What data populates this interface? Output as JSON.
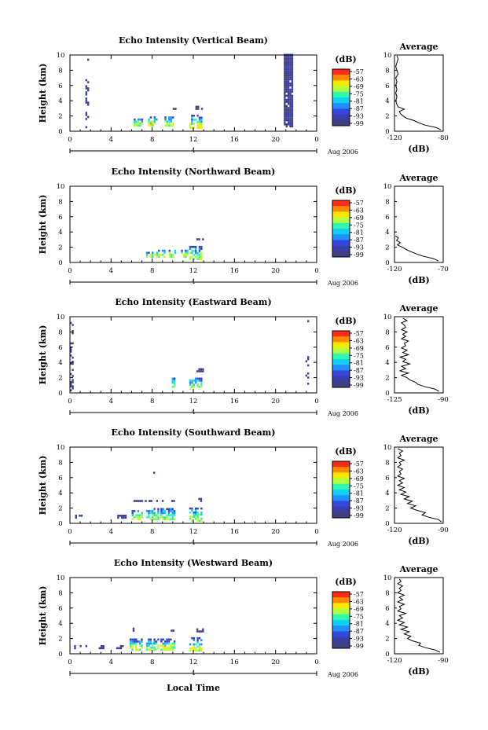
{
  "figure": {
    "xlabel": "Local Time",
    "date_label": "Aug 2006",
    "day_marker": "4",
    "avg_title": "Average",
    "cbar_unit": "(dB)",
    "cbar_ticks": [
      "-57",
      "-63",
      "-69",
      "-75",
      "-81",
      "-87",
      "-93",
      "-99"
    ],
    "cbar_colors": [
      "#ff2a1a",
      "#ff8a00",
      "#f8e800",
      "#b0ff40",
      "#30f8b0",
      "#10d0f8",
      "#2090ff",
      "#3448e0",
      "#3a3fa8",
      "#404080"
    ],
    "echo_color_low": "#3a3f78",
    "ylabel": "Height (km)"
  },
  "chart_data": [
    {
      "type": "heatmap",
      "title": "Echo Intensity (Vertical Beam)",
      "xlabel": "",
      "ylabel": "Height (km)",
      "xlim": [
        0,
        24
      ],
      "ylim": [
        0,
        10
      ],
      "x_ticks": [
        "0",
        "4",
        "8",
        "12",
        "16",
        "20",
        "0"
      ],
      "y_ticks": [
        "0",
        "2",
        "4",
        "6",
        "8",
        "10"
      ],
      "echo_blocks": [
        {
          "t0": 1.5,
          "t1": 1.7,
          "h0": 0.4,
          "h1": 9.8,
          "level": "low",
          "sparse": true
        },
        {
          "t0": 6.2,
          "t1": 7.0,
          "h0": 0.6,
          "h1": 1.6,
          "level": "mixed"
        },
        {
          "t0": 7.6,
          "t1": 8.5,
          "h0": 0.6,
          "h1": 1.8,
          "level": "mixed"
        },
        {
          "t0": 9.2,
          "t1": 10.1,
          "h0": 0.6,
          "h1": 1.8,
          "level": "mixed"
        },
        {
          "t0": 11.6,
          "t1": 12.8,
          "h0": 0.3,
          "h1": 2.0,
          "level": "mixed"
        },
        {
          "t0": 12.2,
          "t1": 12.9,
          "h0": 2.8,
          "h1": 3.1,
          "level": "low"
        },
        {
          "t0": 10.0,
          "t1": 10.2,
          "h0": 2.8,
          "h1": 3.0,
          "level": "low"
        },
        {
          "t0": 20.8,
          "t1": 21.6,
          "h0": 0.5,
          "h1": 9.9,
          "level": "low",
          "dense": true
        }
      ],
      "average": {
        "xlim": [
          -120,
          -80
        ],
        "x_ticks": [
          "-120",
          "-80"
        ],
        "xlabel": "(dB)",
        "heights": [
          0.2,
          0.5,
          0.8,
          1.1,
          1.4,
          1.7,
          2.0,
          2.3,
          2.6,
          2.9,
          3.2,
          3.5,
          4.0,
          4.5,
          5.0,
          5.5,
          6.0,
          6.5,
          7.0,
          7.5,
          8.0,
          8.5,
          9.0,
          9.5,
          9.9
        ],
        "values": [
          -82,
          -86,
          -95,
          -100,
          -104,
          -110,
          -113,
          -115,
          -116,
          -112,
          -117,
          -118,
          -119,
          -118,
          -119,
          -118,
          -119,
          -118,
          -119,
          -117,
          -118,
          -119,
          -118,
          -117,
          -118
        ]
      }
    },
    {
      "type": "heatmap",
      "title": "Echo Intensity (Northward Beam)",
      "xlabel": "",
      "ylabel": "Height (km)",
      "xlim": [
        0,
        24
      ],
      "ylim": [
        0,
        10
      ],
      "x_ticks": [
        "0",
        "4",
        "8",
        "12",
        "16",
        "20",
        "0"
      ],
      "y_ticks": [
        "0",
        "2",
        "4",
        "6",
        "8",
        "10"
      ],
      "echo_blocks": [
        {
          "t0": 7.4,
          "t1": 8.0,
          "h0": 0.6,
          "h1": 1.2,
          "level": "mixed"
        },
        {
          "t0": 8.2,
          "t1": 9.2,
          "h0": 0.6,
          "h1": 1.6,
          "level": "mixed"
        },
        {
          "t0": 9.6,
          "t1": 10.2,
          "h0": 0.6,
          "h1": 1.6,
          "level": "mixed"
        },
        {
          "t0": 10.8,
          "t1": 11.4,
          "h0": 0.6,
          "h1": 1.6,
          "level": "mixed"
        },
        {
          "t0": 11.6,
          "t1": 12.8,
          "h0": 0.3,
          "h1": 2.0,
          "level": "mixed"
        },
        {
          "t0": 12.3,
          "t1": 12.9,
          "h0": 2.9,
          "h1": 3.1,
          "level": "low"
        }
      ],
      "average": {
        "xlim": [
          -120,
          -70
        ],
        "x_ticks": [
          "-120",
          "-70"
        ],
        "xlabel": "(dB)",
        "heights": [
          0.2,
          0.5,
          0.8,
          1.1,
          1.4,
          1.7,
          2.0,
          2.3,
          2.6,
          2.9,
          3.2,
          3.5
        ],
        "values": [
          -75,
          -80,
          -90,
          -97,
          -103,
          -108,
          -112,
          -117,
          -114,
          -118,
          -116,
          -119
        ]
      }
    },
    {
      "type": "heatmap",
      "title": "Echo Intensity (Eastward Beam)",
      "xlabel": "",
      "ylabel": "Height (km)",
      "xlim": [
        0,
        24
      ],
      "ylim": [
        0,
        10
      ],
      "x_ticks": [
        "0",
        "4",
        "8",
        "12",
        "16",
        "20",
        "0"
      ],
      "y_ticks": [
        "0",
        "2",
        "4",
        "6",
        "8",
        "10"
      ],
      "echo_blocks": [
        {
          "t0": 0.0,
          "t1": 0.3,
          "h0": 0.2,
          "h1": 9.8,
          "level": "low",
          "sparse": true
        },
        {
          "t0": 9.9,
          "t1": 10.2,
          "h0": 0.4,
          "h1": 2.0,
          "level": "mixed"
        },
        {
          "t0": 11.6,
          "t1": 12.8,
          "h0": 0.4,
          "h1": 2.0,
          "level": "mixed"
        },
        {
          "t0": 12.3,
          "t1": 12.9,
          "h0": 2.7,
          "h1": 3.0,
          "level": "low"
        },
        {
          "t0": 22.9,
          "t1": 23.2,
          "h0": 0.8,
          "h1": 5.0,
          "level": "low",
          "sparse": true
        },
        {
          "t0": 22.9,
          "t1": 23.1,
          "h0": 9.0,
          "h1": 9.3,
          "level": "low"
        }
      ],
      "average": {
        "xlim": [
          -125,
          -90
        ],
        "x_ticks": [
          "-125",
          "-90"
        ],
        "xlabel": "(dB)",
        "heights": [
          0.2,
          0.5,
          0.8,
          1.1,
          1.4,
          1.7,
          2.0,
          2.3,
          2.6,
          2.9,
          3.2,
          3.5,
          3.8,
          4.1,
          4.4,
          4.7,
          5.0,
          5.3,
          5.6,
          5.9,
          6.2,
          6.5,
          6.8,
          7.1,
          7.4,
          7.7,
          8.0,
          8.3,
          8.6,
          8.9,
          9.2,
          9.5,
          9.8
        ],
        "values": [
          -93,
          -96,
          -103,
          -108,
          -110,
          -114,
          -116,
          -120,
          -115,
          -121,
          -117,
          -120,
          -114,
          -119,
          -117,
          -121,
          -115,
          -119,
          -116,
          -120,
          -117,
          -118,
          -115,
          -120,
          -117,
          -119,
          -116,
          -120,
          -117,
          -118,
          -120,
          -116,
          -119
        ]
      }
    },
    {
      "type": "heatmap",
      "title": "Echo Intensity (Southward Beam)",
      "xlabel": "",
      "ylabel": "Height (km)",
      "xlim": [
        0,
        24
      ],
      "ylim": [
        0,
        10
      ],
      "x_ticks": [
        "0",
        "4",
        "8",
        "12",
        "16",
        "20",
        "0"
      ],
      "y_ticks": [
        "0",
        "2",
        "4",
        "6",
        "8",
        "10"
      ],
      "echo_blocks": [
        {
          "t0": 0.5,
          "t1": 1.2,
          "h0": 0.6,
          "h1": 1.0,
          "level": "low"
        },
        {
          "t0": 3.6,
          "t1": 3.8,
          "h0": 3.3,
          "h1": 3.5,
          "level": "low"
        },
        {
          "t0": 4.6,
          "t1": 5.4,
          "h0": 0.6,
          "h1": 1.0,
          "level": "low"
        },
        {
          "t0": 6.0,
          "t1": 7.0,
          "h0": 0.4,
          "h1": 1.6,
          "level": "mixed"
        },
        {
          "t0": 7.4,
          "t1": 8.6,
          "h0": 0.4,
          "h1": 1.8,
          "level": "mixed"
        },
        {
          "t0": 8.1,
          "t1": 8.3,
          "h0": 6.5,
          "h1": 8.0,
          "level": "low",
          "sparse": true
        },
        {
          "t0": 8.8,
          "t1": 10.2,
          "h0": 0.4,
          "h1": 1.8,
          "level": "mixed"
        },
        {
          "t0": 6.0,
          "t1": 10.2,
          "h0": 2.8,
          "h1": 3.0,
          "level": "low",
          "sparse": true
        },
        {
          "t0": 11.6,
          "t1": 12.8,
          "h0": 0.2,
          "h1": 2.0,
          "level": "mixed"
        },
        {
          "t0": 12.3,
          "t1": 12.9,
          "h0": 2.8,
          "h1": 3.2,
          "level": "low"
        }
      ],
      "average": {
        "xlim": [
          -120,
          -90
        ],
        "x_ticks": [
          "-120",
          "-90"
        ],
        "xlabel": "(dB)",
        "heights": [
          0.2,
          0.5,
          0.8,
          1.1,
          1.4,
          1.7,
          2.0,
          2.3,
          2.6,
          2.9,
          3.2,
          3.5,
          3.8,
          4.1,
          4.4,
          4.7,
          5.0,
          5.3,
          5.6,
          5.9,
          6.2,
          6.5,
          6.8,
          7.1,
          7.4,
          7.7,
          8.0,
          8.3,
          8.6,
          8.9,
          9.2,
          9.5,
          9.8
        ],
        "values": [
          -91,
          -93,
          -99,
          -103,
          -101,
          -106,
          -110,
          -107,
          -112,
          -109,
          -114,
          -111,
          -116,
          -113,
          -117,
          -114,
          -118,
          -115,
          -117,
          -114,
          -118,
          -116,
          -117,
          -115,
          -118,
          -116,
          -117,
          -114,
          -118,
          -116,
          -117,
          -115,
          -118
        ]
      }
    },
    {
      "type": "heatmap",
      "title": "Echo Intensity (Westward Beam)",
      "xlabel": "Local Time",
      "ylabel": "Height (km)",
      "xlim": [
        0,
        24
      ],
      "ylim": [
        0,
        10
      ],
      "x_ticks": [
        "0",
        "4",
        "8",
        "12",
        "16",
        "20",
        "0"
      ],
      "y_ticks": [
        "0",
        "2",
        "4",
        "6",
        "8",
        "10"
      ],
      "echo_blocks": [
        {
          "t0": 0.4,
          "t1": 2.0,
          "h0": 0.6,
          "h1": 1.0,
          "level": "low",
          "sparse": true
        },
        {
          "t0": 2.8,
          "t1": 3.2,
          "h0": 0.6,
          "h1": 1.0,
          "level": "low"
        },
        {
          "t0": 4.5,
          "t1": 5.2,
          "h0": 0.6,
          "h1": 1.0,
          "level": "low"
        },
        {
          "t0": 5.8,
          "t1": 7.0,
          "h0": 0.4,
          "h1": 1.8,
          "level": "mixed"
        },
        {
          "t0": 6.1,
          "t1": 6.3,
          "h0": 2.9,
          "h1": 3.2,
          "level": "low"
        },
        {
          "t0": 7.4,
          "t1": 8.6,
          "h0": 0.4,
          "h1": 1.8,
          "level": "mixed"
        },
        {
          "t0": 8.8,
          "t1": 10.2,
          "h0": 0.4,
          "h1": 1.8,
          "level": "mixed"
        },
        {
          "t0": 9.8,
          "t1": 10.0,
          "h0": 2.9,
          "h1": 3.1,
          "level": "low"
        },
        {
          "t0": 11.6,
          "t1": 12.8,
          "h0": 0.3,
          "h1": 2.0,
          "level": "mixed"
        },
        {
          "t0": 12.3,
          "t1": 12.9,
          "h0": 2.8,
          "h1": 3.1,
          "level": "low"
        }
      ],
      "average": {
        "xlim": [
          -120,
          -90
        ],
        "x_ticks": [
          "-120",
          "-90"
        ],
        "xlabel": "(dB)",
        "heights": [
          0.2,
          0.5,
          0.8,
          1.1,
          1.4,
          1.7,
          2.0,
          2.3,
          2.6,
          2.9,
          3.2,
          3.5,
          3.8,
          4.1,
          4.4,
          4.7,
          5.0,
          5.3,
          5.6,
          5.9,
          6.2,
          6.5,
          6.8,
          7.1,
          7.4,
          7.7,
          8.0,
          8.3,
          8.6,
          8.9,
          9.2,
          9.5,
          9.8
        ],
        "values": [
          -92,
          -95,
          -101,
          -105,
          -104,
          -109,
          -112,
          -110,
          -114,
          -111,
          -116,
          -112,
          -117,
          -114,
          -118,
          -115,
          -117,
          -113,
          -118,
          -116,
          -117,
          -114,
          -118,
          -115,
          -117,
          -114,
          -118,
          -116,
          -117,
          -115,
          -118,
          -116,
          -117
        ]
      }
    }
  ]
}
